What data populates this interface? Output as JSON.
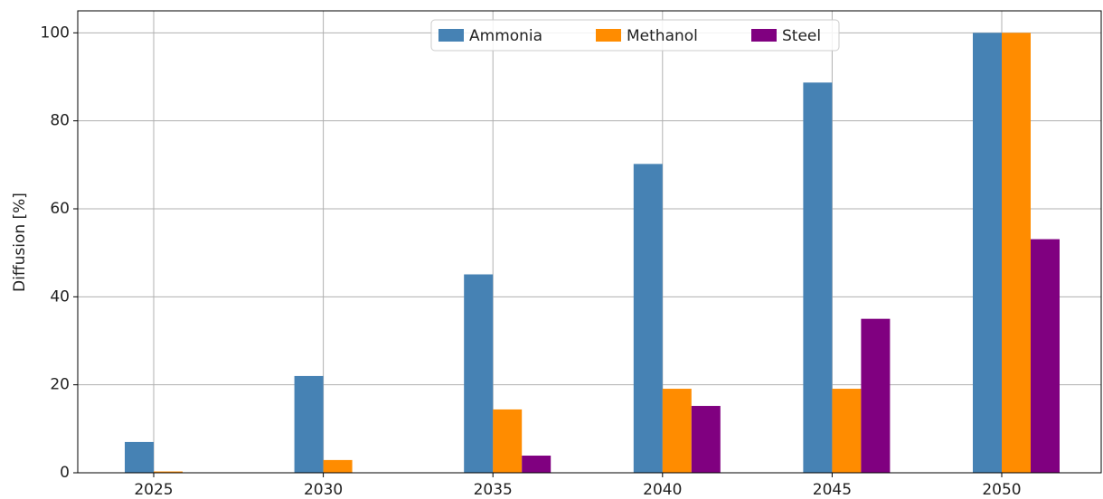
{
  "chart_data": {
    "type": "bar",
    "ylabel": "Diffusion [%]",
    "categories": [
      "2025",
      "2030",
      "2035",
      "2040",
      "2045",
      "2050"
    ],
    "series": [
      {
        "name": "Ammonia",
        "color": "#4682b4",
        "values": [
          7.0,
          22.0,
          45.1,
          70.2,
          88.7,
          100
        ]
      },
      {
        "name": "Methanol",
        "color": "#ff8c00",
        "values": [
          0.3,
          2.9,
          14.4,
          19.1,
          19.1,
          100
        ]
      },
      {
        "name": "Steel",
        "color": "#800080",
        "values": [
          0,
          0,
          3.9,
          15.2,
          35.0,
          53.1
        ]
      }
    ],
    "ylim": [
      0,
      105
    ],
    "yticks": [
      0,
      20,
      40,
      60,
      80,
      100
    ],
    "grid": true,
    "legend": "upper center"
  }
}
